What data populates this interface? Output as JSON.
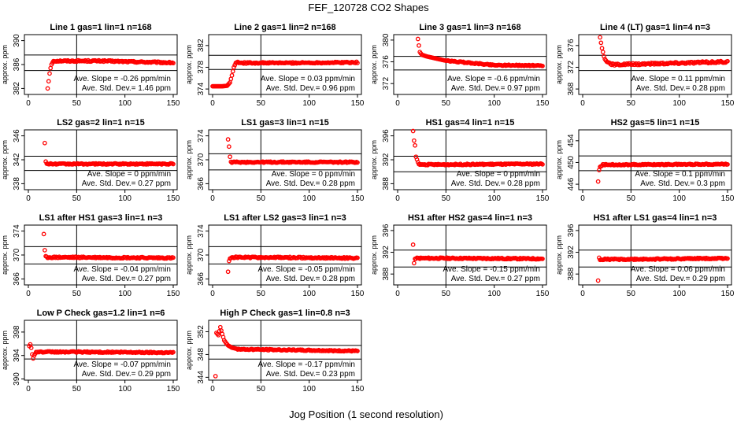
{
  "title": "FEF_120728  CO2 Shapes",
  "xlabel": "Jog Position (1 second resolution)",
  "ylabel": "approx. ppm",
  "marker_color": "#ff0000",
  "chart_data": [
    {
      "type": "scatter",
      "title": "Line 1 gas=1 lin=1 n=168",
      "xlim": [
        0,
        150
      ],
      "xticks": [
        0,
        50,
        100,
        150
      ],
      "ylim": [
        381,
        391
      ],
      "yticks": [
        382,
        386,
        390
      ],
      "ref_lines": [
        387.6,
        385
      ],
      "slope": "Ave. Slope = -0.26 ppm/min",
      "stddev": "Ave. Std. Dev.= 1.46 ppm",
      "series": [
        {
          "start": 20,
          "end": 150,
          "first": [
            [
              20,
              382
            ],
            [
              21,
              383.2
            ],
            [
              22,
              384.5
            ],
            [
              23,
              385.4
            ],
            [
              24,
              386
            ],
            [
              25,
              386.3
            ]
          ],
          "base": 386.3,
          "noise": 0.12,
          "mid": [
            [
              75,
              386.6
            ],
            [
              150,
              386.3
            ]
          ]
        }
      ]
    },
    {
      "type": "scatter",
      "title": "Line 2 gas=1 lin=2 n=168",
      "xlim": [
        0,
        150
      ],
      "xticks": [
        0,
        50,
        100,
        150
      ],
      "ylim": [
        373,
        384
      ],
      "yticks": [
        374,
        378,
        382
      ],
      "ref_lines": [
        380.2,
        377.6
      ],
      "slope": "Ave. Slope = 0.03 ppm/min",
      "stddev": "Ave. Std. Dev.= 0.96 ppm",
      "series": [
        {
          "start": 0,
          "end": 150,
          "first": [
            [
              0,
              374.5
            ],
            [
              5,
              374.5
            ],
            [
              10,
              374.5
            ],
            [
              15,
              374.6
            ],
            [
              18,
              375.2
            ],
            [
              20,
              376.5
            ],
            [
              22,
              378
            ],
            [
              24,
              378.8
            ],
            [
              26,
              379
            ]
          ],
          "base": 378.9,
          "noise": 0.12,
          "mid": [
            [
              80,
              378.8
            ],
            [
              150,
              378.9
            ]
          ]
        }
      ]
    },
    {
      "type": "scatter",
      "title": "Line 3 gas=1 lin=3 n=168",
      "xlim": [
        0,
        150
      ],
      "xticks": [
        0,
        50,
        100,
        150
      ],
      "ylim": [
        370,
        381
      ],
      "yticks": [
        372,
        376,
        380
      ],
      "ref_lines": [
        377,
        374.5
      ],
      "slope": "Ave. Slope = -0.6 ppm/min",
      "stddev": "Ave. Std. Dev.= 0.97 ppm",
      "series": [
        {
          "start": 21,
          "end": 150,
          "first": [
            [
              21,
              380.2
            ],
            [
              22,
              379
            ],
            [
              23,
              377.8
            ],
            [
              25,
              377.3
            ],
            [
              30,
              377
            ],
            [
              40,
              376.6
            ],
            [
              50,
              376.2
            ]
          ],
          "base": 375.5,
          "noise": 0.1,
          "mid": [
            [
              50,
              376.2
            ],
            [
              100,
              375.4
            ],
            [
              150,
              375.3
            ]
          ]
        }
      ]
    },
    {
      "type": "scatter",
      "title": "Line 4 (LT) gas=1 lin=4 n=3",
      "xlim": [
        0,
        150
      ],
      "xticks": [
        0,
        50,
        100,
        150
      ],
      "ylim": [
        367,
        378
      ],
      "yticks": [
        368,
        372,
        376
      ],
      "ref_lines": [
        374.2,
        371.4
      ],
      "slope": "Ave. Slope = 0.11 ppm/min",
      "stddev": "Ave. Std. Dev.= 0.28 ppm",
      "series": [
        {
          "start": 18,
          "end": 150,
          "first": [
            [
              18,
              377.5
            ],
            [
              19,
              376.5
            ],
            [
              20,
              375.5
            ],
            [
              21,
              374.8
            ],
            [
              22,
              374
            ],
            [
              23,
              373.5
            ],
            [
              25,
              373
            ],
            [
              28,
              372.8
            ]
          ],
          "base": 372.9,
          "noise": 0.18,
          "mid": [
            [
              40,
              372.5
            ],
            [
              150,
              373
            ]
          ]
        }
      ]
    },
    {
      "type": "scatter",
      "title": "LS2 gas=2 lin=1 n=15",
      "xlim": [
        0,
        150
      ],
      "xticks": [
        0,
        50,
        100,
        150
      ],
      "ylim": [
        337,
        347
      ],
      "yticks": [
        338,
        342,
        346
      ],
      "ref_lines": [
        342.6,
        340.2
      ],
      "slope": "Ave. Slope = 0 ppm/min",
      "stddev": "Ave. Std. Dev.= 0.27 ppm",
      "series": [
        {
          "start": 17,
          "end": 150,
          "first": [
            [
              17,
              344.8
            ],
            [
              18,
              341.7
            ]
          ],
          "base": 341.4,
          "noise": 0.1,
          "mid": [
            [
              50,
              341.3
            ],
            [
              150,
              341.3
            ]
          ]
        }
      ]
    },
    {
      "type": "scatter",
      "title": "LS1 gas=3 lin=1 n=15",
      "xlim": [
        0,
        150
      ],
      "xticks": [
        0,
        50,
        100,
        150
      ],
      "ylim": [
        365,
        375
      ],
      "yticks": [
        366,
        370,
        374
      ],
      "ref_lines": [
        371,
        368.3
      ],
      "slope": "Ave. Slope = 0 ppm/min",
      "stddev": "Ave. Std. Dev.= 0.28 ppm",
      "series": [
        {
          "start": 16,
          "end": 150,
          "first": [
            [
              16,
              373.4
            ],
            [
              17,
              372.2
            ],
            [
              18,
              370.5
            ]
          ],
          "base": 369.6,
          "noise": 0.1,
          "mid": [
            [
              50,
              369.6
            ],
            [
              150,
              369.6
            ]
          ]
        }
      ]
    },
    {
      "type": "scatter",
      "title": "HS1 gas=4 lin=1 n=15",
      "xlim": [
        0,
        150
      ],
      "xticks": [
        0,
        50,
        100,
        150
      ],
      "ylim": [
        387,
        397
      ],
      "yticks": [
        388,
        392,
        396
      ],
      "ref_lines": [
        392.6,
        390
      ],
      "slope": "Ave. Slope = 0 ppm/min",
      "stddev": "Ave. Std. Dev.= 0.28 ppm",
      "series": [
        {
          "start": 16,
          "end": 150,
          "first": [
            [
              16,
              396.8
            ],
            [
              17,
              395.2
            ],
            [
              18,
              394.4
            ],
            [
              19,
              392.5
            ],
            [
              21,
              391.6
            ]
          ],
          "base": 391.3,
          "noise": 0.1,
          "mid": [
            [
              50,
              391.2
            ],
            [
              150,
              391.3
            ]
          ]
        }
      ]
    },
    {
      "type": "scatter",
      "title": "HS2 gas=5 lin=1 n=15",
      "xlim": [
        0,
        150
      ],
      "xticks": [
        0,
        50,
        100,
        150
      ],
      "ylim": [
        445,
        456
      ],
      "yticks": [
        446,
        450,
        454
      ],
      "ref_lines": [
        451.2,
        448.5
      ],
      "slope": "Ave. Slope = 0.1 ppm/min",
      "stddev": "Ave. Std. Dev.= 0.3 ppm",
      "series": [
        {
          "start": 16,
          "end": 150,
          "first": [
            [
              16,
              446.5
            ],
            [
              17,
              448.6
            ],
            [
              18,
              449.2
            ],
            [
              20,
              449.4
            ]
          ],
          "base": 449.6,
          "noise": 0.1,
          "mid": [
            [
              50,
              449.6
            ],
            [
              150,
              449.7
            ]
          ]
        }
      ]
    },
    {
      "type": "scatter",
      "title": "LS1 after HS1 gas=3 lin=1 n=3",
      "xlim": [
        0,
        150
      ],
      "xticks": [
        0,
        50,
        100,
        150
      ],
      "ylim": [
        365,
        375
      ],
      "yticks": [
        366,
        370,
        374
      ],
      "ref_lines": [
        371.4,
        368.5
      ],
      "slope": "Ave. Slope = -0.04 ppm/min",
      "stddev": "Ave. Std. Dev.= 0.27 ppm",
      "series": [
        {
          "start": 16,
          "end": 150,
          "first": [
            [
              16,
              373.5
            ],
            [
              17,
              370.8
            ],
            [
              18,
              369.8
            ]
          ],
          "base": 369.6,
          "noise": 0.12,
          "mid": [
            [
              50,
              369.6
            ],
            [
              150,
              369.5
            ]
          ]
        }
      ]
    },
    {
      "type": "scatter",
      "title": "LS1 after LS2 gas=3 lin=1 n=3",
      "xlim": [
        0,
        150
      ],
      "xticks": [
        0,
        50,
        100,
        150
      ],
      "ylim": [
        365,
        375
      ],
      "yticks": [
        366,
        370,
        374
      ],
      "ref_lines": [
        371.4,
        368.5
      ],
      "slope": "Ave. Slope = -0.05 ppm/min",
      "stddev": "Ave. Std. Dev.= 0.28 ppm",
      "series": [
        {
          "start": 16,
          "end": 150,
          "first": [
            [
              16,
              367.2
            ],
            [
              17,
              369
            ],
            [
              18,
              369.4
            ]
          ],
          "base": 369.6,
          "noise": 0.12,
          "mid": [
            [
              50,
              369.6
            ],
            [
              150,
              369.5
            ]
          ]
        }
      ]
    },
    {
      "type": "scatter",
      "title": "HS1 after HS2 gas=4 lin=1 n=3",
      "xlim": [
        0,
        150
      ],
      "xticks": [
        0,
        50,
        100,
        150
      ],
      "ylim": [
        386,
        397
      ],
      "yticks": [
        388,
        392,
        396
      ],
      "ref_lines": [
        392.4,
        389.3
      ],
      "slope": "Ave. Slope = -0.15 ppm/min",
      "stddev": "Ave. Std. Dev.= 0.27 ppm",
      "series": [
        {
          "start": 16,
          "end": 150,
          "first": [
            [
              16,
              393.4
            ],
            [
              17,
              390
            ],
            [
              18,
              390.8
            ]
          ],
          "base": 390.9,
          "noise": 0.12,
          "mid": [
            [
              50,
              390.9
            ],
            [
              150,
              390.8
            ]
          ]
        }
      ]
    },
    {
      "type": "scatter",
      "title": "HS1 after LS1 gas=4 lin=1 n=3",
      "xlim": [
        0,
        150
      ],
      "xticks": [
        0,
        50,
        100,
        150
      ],
      "ylim": [
        386,
        397
      ],
      "yticks": [
        388,
        392,
        396
      ],
      "ref_lines": [
        392.4,
        389.3
      ],
      "slope": "Ave. Slope = 0.06 ppm/min",
      "stddev": "Ave. Std. Dev.= 0.29 ppm",
      "series": [
        {
          "start": 16,
          "end": 150,
          "first": [
            [
              16,
              386.8
            ],
            [
              17,
              391
            ],
            [
              18,
              390.6
            ]
          ],
          "base": 390.7,
          "noise": 0.12,
          "mid": [
            [
              50,
              390.7
            ],
            [
              150,
              390.9
            ]
          ]
        }
      ]
    },
    {
      "type": "scatter",
      "title": "Low P Check gas=1.2 lin=1 n=6",
      "xlim": [
        0,
        150
      ],
      "xticks": [
        0,
        50,
        100,
        150
      ],
      "ylim": [
        389.8,
        400
      ],
      "yticks": [
        390,
        394,
        398
      ],
      "ref_lines": [
        395.8,
        393.4
      ],
      "slope": "Ave. Slope = -0.07 ppm/min",
      "stddev": "Ave. Std. Dev.= 0.29 ppm",
      "series": [
        {
          "start": 1,
          "end": 150,
          "first": [
            [
              1,
              395.6
            ],
            [
              2,
              395.9
            ],
            [
              3,
              395.3
            ],
            [
              4,
              394.2
            ],
            [
              5,
              393.5
            ],
            [
              6,
              394
            ],
            [
              8,
              394.6
            ]
          ],
          "base": 394.6,
          "noise": 0.1,
          "mid": [
            [
              50,
              394.6
            ],
            [
              150,
              394.5
            ]
          ]
        }
      ]
    },
    {
      "type": "scatter",
      "title": "High P Check gas=1 lin=0.8 n=3",
      "xlim": [
        0,
        150
      ],
      "xticks": [
        0,
        50,
        100,
        150
      ],
      "ylim": [
        343.5,
        354
      ],
      "yticks": [
        344,
        348,
        352
      ],
      "ref_lines": [
        349.6,
        347.2
      ],
      "slope": "Ave. Slope = -0.17 ppm/min",
      "stddev": "Ave. Std. Dev.= 0.23 ppm",
      "series": [
        {
          "start": 3,
          "end": 150,
          "first": [
            [
              3,
              344.2
            ],
            [
              4,
              351.8
            ],
            [
              6,
              351.4
            ],
            [
              8,
              352.8
            ],
            [
              10,
              351.6
            ],
            [
              12,
              350.5
            ],
            [
              14,
              350
            ],
            [
              16,
              349.6
            ],
            [
              20,
              349.2
            ],
            [
              25,
              349
            ]
          ],
          "base": 348.8,
          "noise": 0.1,
          "mid": [
            [
              40,
              348.9
            ],
            [
              150,
              348.6
            ]
          ]
        }
      ]
    }
  ]
}
